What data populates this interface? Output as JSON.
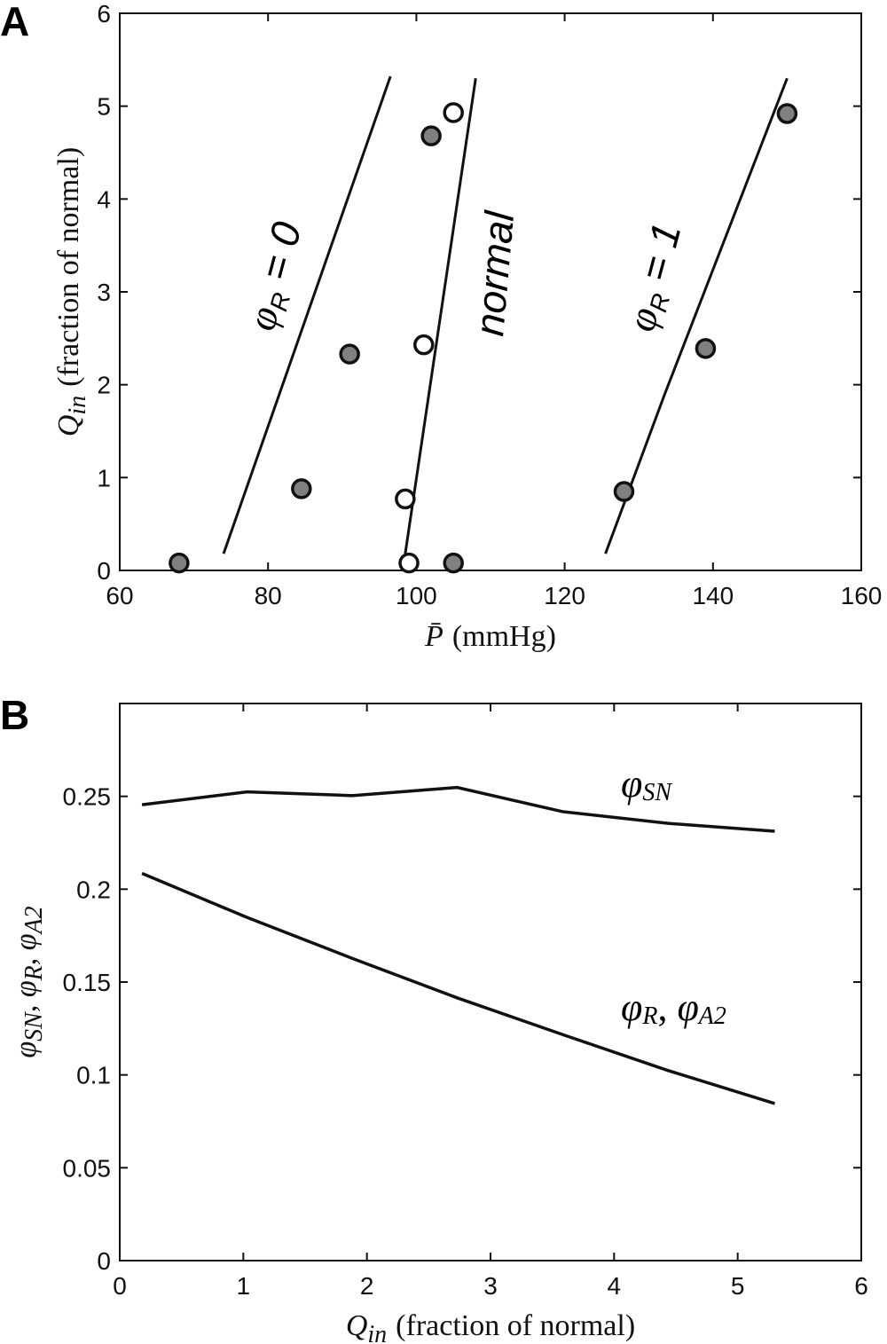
{
  "chart_data": [
    {
      "panel_label": "A",
      "type": "line+scatter",
      "xlabel_main": "P̄",
      "xlabel_unit": "(mmHg)",
      "ylabel_main": "Q",
      "ylabel_sub": "in",
      "ylabel_unit": "(fraction of normal)",
      "xlim": [
        60,
        160
      ],
      "ylim": [
        0,
        6
      ],
      "x_ticks": [
        60,
        80,
        100,
        120,
        140,
        160
      ],
      "y_ticks": [
        0,
        1,
        2,
        3,
        4,
        5,
        6
      ],
      "lines": [
        {
          "name": "phiR0",
          "label_main": "φ",
          "label_sub": "R",
          "label_rest": " = 0",
          "x": [
            74,
            96.5
          ],
          "y": [
            0.18,
            5.32
          ]
        },
        {
          "name": "normal",
          "label_main": "normal",
          "label_sub": "",
          "label_rest": "",
          "x": [
            98.5,
            108
          ],
          "y": [
            0.18,
            5.3
          ]
        },
        {
          "name": "phiR1",
          "label_main": "φ",
          "label_sub": "R",
          "label_rest": " = 1",
          "x": [
            125.5,
            133.5,
            150
          ],
          "y": [
            0.18,
            1.9,
            5.3
          ]
        }
      ],
      "points_filled": {
        "x": [
          68,
          84.5,
          91,
          102,
          105,
          128,
          139,
          150
        ],
        "y": [
          0.08,
          0.88,
          2.33,
          4.68,
          0.08,
          0.85,
          2.39,
          4.92
        ]
      },
      "points_open": {
        "x": [
          99,
          98.5,
          101,
          105
        ],
        "y": [
          0.08,
          0.77,
          2.43,
          4.93
        ]
      },
      "colors": {
        "filled": "#808080",
        "open": "#ffffff",
        "line": "#111111"
      }
    },
    {
      "panel_label": "B",
      "type": "line",
      "xlabel_main": "Q",
      "xlabel_sub": "in",
      "xlabel_unit": "(fraction of normal)",
      "ylabel_parts": [
        {
          "main": "φ",
          "sub": "SN",
          "sep": ", "
        },
        {
          "main": "φ",
          "sub": "R",
          "sep": ", "
        },
        {
          "main": "φ",
          "sub": "A2",
          "sep": ""
        }
      ],
      "xlim": [
        0,
        6
      ],
      "ylim": [
        0,
        0.3
      ],
      "x_ticks": [
        0,
        1,
        2,
        3,
        4,
        5,
        6
      ],
      "y_ticks": [
        0,
        0.05,
        0.1,
        0.15,
        0.2,
        0.25
      ],
      "y_tick_labels": [
        "0",
        "0.05",
        "0.1",
        "0.15",
        "0.2",
        "0.25"
      ],
      "series": [
        {
          "name": "phiSN",
          "label_parts": [
            {
              "main": "φ",
              "sub": "SN",
              "sep": ""
            }
          ],
          "x": [
            0.18,
            1.03,
            1.88,
            2.73,
            3.58,
            4.43,
            5.3
          ],
          "y": [
            0.2455,
            0.2524,
            0.2504,
            0.2548,
            0.2418,
            0.2355,
            0.2312
          ]
        },
        {
          "name": "phiR_phiA2",
          "label_parts": [
            {
              "main": "φ",
              "sub": "R",
              "sep": ", "
            },
            {
              "main": "φ",
              "sub": "A2",
              "sep": ""
            }
          ],
          "x": [
            0.18,
            1.03,
            1.88,
            2.73,
            3.58,
            4.43,
            5.3
          ],
          "y": [
            0.2085,
            0.1848,
            0.1628,
            0.1415,
            0.1218,
            0.1025,
            0.0846
          ]
        }
      ]
    }
  ]
}
